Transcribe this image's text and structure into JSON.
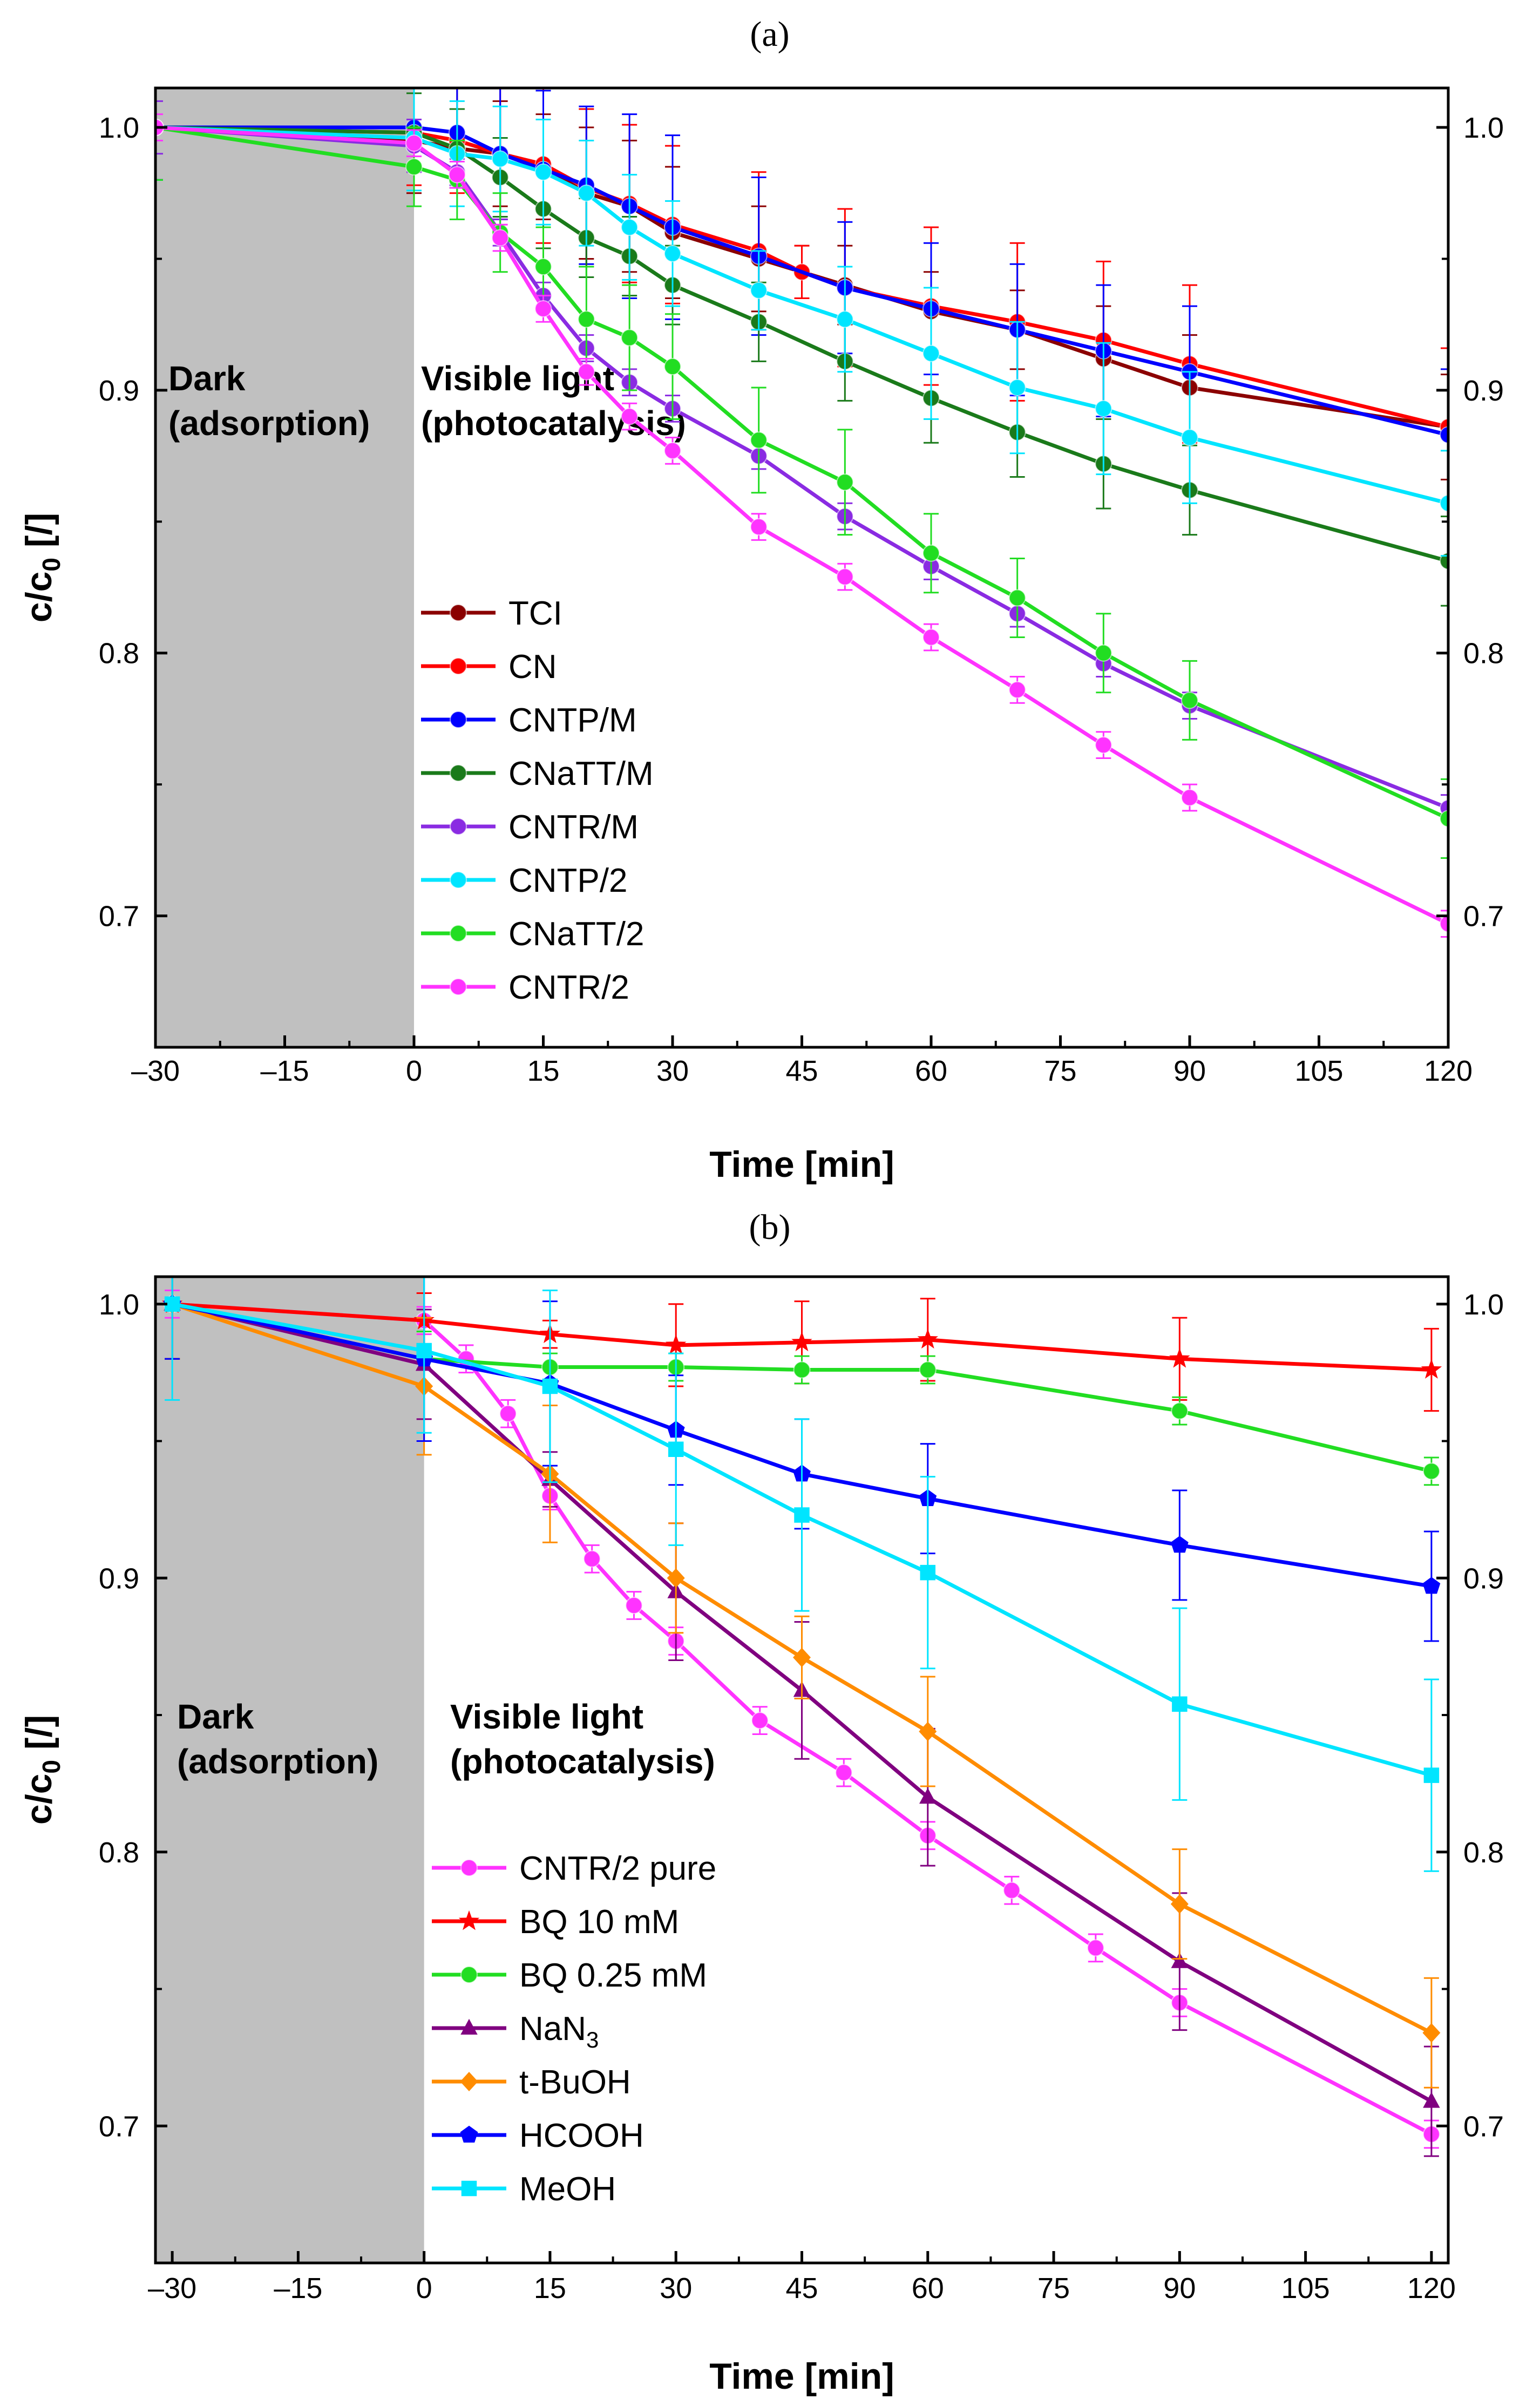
{
  "chart_data": [
    {
      "type": "line",
      "panel_label": "(a)",
      "xlabel": "Time [min]",
      "ylabel_main": "c/c",
      "ylabel_sub": "0",
      "ylabel_unit": " [/]",
      "xlim": [
        -30,
        120
      ],
      "ylim": [
        0.65,
        1.015
      ],
      "xticks": [
        -30,
        -15,
        0,
        15,
        30,
        45,
        60,
        75,
        90,
        105,
        120
      ],
      "xtick_labels": [
        "–30",
        "–15",
        "0",
        "15",
        "30",
        "45",
        "60",
        "75",
        "90",
        "105",
        "120"
      ],
      "yticks": [
        0.7,
        0.8,
        0.9,
        1.0
      ],
      "ytick_labels": [
        "0.7",
        "0.8",
        "0.9",
        "1.0"
      ],
      "shaded_region": {
        "x_from": -30,
        "x_to": 0,
        "color": "#c0c0c0"
      },
      "annotations": [
        {
          "lines": [
            "Dark",
            "(adsorption)"
          ],
          "x": -29,
          "y": 0.915
        },
        {
          "lines": [
            "Visible light",
            "(photocatalysis)"
          ],
          "x": 1,
          "y": 0.915
        }
      ],
      "legend": {
        "position": "lower-left-center"
      },
      "series": [
        {
          "name": "TCI",
          "color": "#8b0000",
          "marker": "circle",
          "x": [
            -30,
            0,
            5,
            10,
            15,
            20,
            25,
            30,
            40,
            45,
            50,
            60,
            70,
            80,
            90,
            120
          ],
          "y": [
            1.0,
            0.995,
            0.992,
            0.99,
            0.985,
            0.975,
            0.97,
            0.96,
            0.95,
            0.945,
            0.94,
            0.93,
            0.923,
            0.912,
            0.901,
            0.886
          ],
          "err": [
            0.02,
            0.02,
            0.015,
            0.02,
            0.02,
            0.025,
            0.025,
            0.025,
            0.02,
            0.01,
            0.015,
            0.015,
            0.015,
            0.02,
            0.02,
            0.02
          ]
        },
        {
          "name": "CN",
          "color": "#ff0000",
          "marker": "circle",
          "x": [
            -30,
            0,
            5,
            10,
            15,
            20,
            25,
            30,
            40,
            45,
            50,
            60,
            70,
            80,
            90,
            120
          ],
          "y": [
            1.0,
            0.998,
            0.995,
            0.99,
            0.986,
            0.977,
            0.971,
            0.963,
            0.953,
            0.945,
            0.939,
            0.932,
            0.926,
            0.919,
            0.91,
            0.886
          ],
          "err": [
            0.02,
            0.02,
            0.02,
            0.025,
            0.03,
            0.03,
            0.03,
            0.03,
            0.03,
            0.01,
            0.03,
            0.03,
            0.03,
            0.03,
            0.03,
            0.03
          ]
        },
        {
          "name": "CNTP/M",
          "color": "#0000ff",
          "marker": "circle",
          "x": [
            -30,
            0,
            5,
            10,
            15,
            20,
            25,
            30,
            40,
            50,
            60,
            70,
            80,
            90,
            120
          ],
          "y": [
            1.0,
            1.0,
            0.998,
            0.99,
            0.984,
            0.978,
            0.97,
            0.962,
            0.951,
            0.939,
            0.931,
            0.923,
            0.915,
            0.907,
            0.883
          ],
          "err": [
            0.02,
            0.015,
            0.02,
            0.025,
            0.03,
            0.03,
            0.035,
            0.035,
            0.03,
            0.025,
            0.025,
            0.025,
            0.025,
            0.025,
            0.025
          ]
        },
        {
          "name": "CNaTT/M",
          "color": "#1a7a1a",
          "marker": "circle",
          "x": [
            -30,
            0,
            5,
            10,
            15,
            20,
            25,
            30,
            40,
            50,
            60,
            70,
            80,
            90,
            120
          ],
          "y": [
            1.0,
            0.998,
            0.992,
            0.981,
            0.969,
            0.958,
            0.951,
            0.94,
            0.926,
            0.911,
            0.897,
            0.884,
            0.872,
            0.862,
            0.835
          ],
          "err": [
            0.02,
            0.015,
            0.015,
            0.015,
            0.015,
            0.015,
            0.015,
            0.015,
            0.015,
            0.015,
            0.017,
            0.017,
            0.017,
            0.017,
            0.017
          ]
        },
        {
          "name": "CNTR/M",
          "color": "#8a2be2",
          "marker": "circle",
          "x": [
            -30,
            0,
            5,
            10,
            15,
            20,
            25,
            30,
            40,
            50,
            60,
            70,
            80,
            90,
            120
          ],
          "y": [
            1.0,
            0.993,
            0.983,
            0.96,
            0.936,
            0.916,
            0.903,
            0.893,
            0.875,
            0.852,
            0.833,
            0.815,
            0.796,
            0.78,
            0.741
          ],
          "err": [
            0.01,
            0.01,
            0.005,
            0.005,
            0.005,
            0.005,
            0.005,
            0.005,
            0.005,
            0.005,
            0.005,
            0.005,
            0.005,
            0.005,
            0.005
          ]
        },
        {
          "name": "CNTP/2",
          "color": "#00e5ff",
          "marker": "circle",
          "x": [
            -30,
            0,
            5,
            10,
            15,
            20,
            25,
            30,
            40,
            50,
            60,
            70,
            80,
            90,
            120
          ],
          "y": [
            1.0,
            0.996,
            0.99,
            0.988,
            0.983,
            0.975,
            0.962,
            0.952,
            0.938,
            0.927,
            0.914,
            0.901,
            0.893,
            0.882,
            0.857
          ],
          "err": [
            0.02,
            0.02,
            0.02,
            0.02,
            0.02,
            0.02,
            0.02,
            0.02,
            0.015,
            0.02,
            0.025,
            0.025,
            0.025,
            0.025,
            0.02
          ]
        },
        {
          "name": "CNaTT/2",
          "color": "#22dd22",
          "marker": "circle",
          "x": [
            -30,
            0,
            5,
            10,
            15,
            20,
            25,
            30,
            40,
            50,
            60,
            70,
            80,
            90,
            120
          ],
          "y": [
            1.0,
            0.985,
            0.98,
            0.96,
            0.947,
            0.927,
            0.92,
            0.909,
            0.881,
            0.865,
            0.838,
            0.821,
            0.8,
            0.782,
            0.737
          ],
          "err": [
            0.02,
            0.015,
            0.015,
            0.015,
            0.015,
            0.02,
            0.02,
            0.02,
            0.02,
            0.02,
            0.015,
            0.015,
            0.015,
            0.015,
            0.015
          ]
        },
        {
          "name": "CNTR/2",
          "color": "#ff33ff",
          "marker": "circle",
          "x": [
            -30,
            0,
            5,
            10,
            15,
            20,
            25,
            30,
            40,
            50,
            60,
            70,
            80,
            90,
            120
          ],
          "y": [
            1.0,
            0.994,
            0.982,
            0.958,
            0.931,
            0.907,
            0.89,
            0.877,
            0.848,
            0.829,
            0.806,
            0.786,
            0.765,
            0.745,
            0.697
          ],
          "err": [
            0.005,
            0.005,
            0.005,
            0.005,
            0.005,
            0.005,
            0.005,
            0.005,
            0.005,
            0.005,
            0.005,
            0.005,
            0.005,
            0.005,
            0.005
          ]
        }
      ]
    },
    {
      "type": "line",
      "panel_label": "(b)",
      "xlabel": "Time [min]",
      "ylabel_main": "c/c",
      "ylabel_sub": "0",
      "ylabel_unit": " [/]",
      "xlim": [
        -32,
        122
      ],
      "ylim": [
        0.65,
        1.01
      ],
      "xticks": [
        -30,
        -15,
        0,
        15,
        30,
        45,
        60,
        75,
        90,
        105,
        120
      ],
      "xtick_labels": [
        "–30",
        "–15",
        "0",
        "15",
        "30",
        "45",
        "60",
        "75",
        "90",
        "105",
        "120"
      ],
      "yticks": [
        0.7,
        0.8,
        0.9,
        1.0
      ],
      "ytick_labels": [
        "0.7",
        "0.8",
        "0.9",
        "1.0"
      ],
      "shaded_region": {
        "x_from": -32,
        "x_to": 0,
        "color": "#c0c0c0"
      },
      "annotations": [
        {
          "lines": [
            "Dark",
            "(adsorption)"
          ],
          "x": -31,
          "y": 0.855
        },
        {
          "lines": [
            "Visible light",
            "(photocatalysis)"
          ],
          "x": 1.5,
          "y": 0.855
        }
      ],
      "legend": {
        "position": "lower-left-center"
      },
      "series": [
        {
          "name": "CNTR/2 pure",
          "color": "#ff33ff",
          "marker": "circle",
          "x": [
            -30,
            0,
            5,
            10,
            15,
            20,
            25,
            30,
            40,
            50,
            60,
            70,
            80,
            90,
            120
          ],
          "y": [
            1.0,
            0.994,
            0.98,
            0.96,
            0.93,
            0.907,
            0.89,
            0.877,
            0.848,
            0.829,
            0.806,
            0.786,
            0.765,
            0.745,
            0.697
          ],
          "err": [
            0.005,
            0.005,
            0.005,
            0.005,
            0.005,
            0.005,
            0.005,
            0.005,
            0.005,
            0.005,
            0.005,
            0.005,
            0.005,
            0.005,
            0.005
          ]
        },
        {
          "name": "BQ 10 mM",
          "color": "#ff0000",
          "marker": "star",
          "x": [
            -30,
            0,
            15,
            30,
            45,
            60,
            90,
            120
          ],
          "y": [
            1.0,
            0.994,
            0.989,
            0.985,
            0.986,
            0.987,
            0.98,
            0.976
          ],
          "err": [
            0.02,
            0.01,
            0.005,
            0.015,
            0.015,
            0.015,
            0.015,
            0.015
          ]
        },
        {
          "name": "BQ 0.25 mM",
          "color": "#22dd22",
          "marker": "circle",
          "x": [
            -30,
            0,
            15,
            30,
            45,
            60,
            90,
            120
          ],
          "y": [
            1.0,
            0.98,
            0.977,
            0.977,
            0.976,
            0.976,
            0.961,
            0.939
          ],
          "err": [
            0.02,
            0.01,
            0.005,
            0.005,
            0.005,
            0.005,
            0.005,
            0.005
          ]
        },
        {
          "name": "NaN",
          "name_sub": "3",
          "color": "#800080",
          "marker": "triangle",
          "x": [
            -30,
            0,
            15,
            30,
            45,
            60,
            90,
            120
          ],
          "y": [
            1.0,
            0.978,
            0.936,
            0.895,
            0.859,
            0.82,
            0.76,
            0.709
          ],
          "err": [
            0.02,
            0.02,
            0.01,
            0.025,
            0.025,
            0.025,
            0.025,
            0.02
          ]
        },
        {
          "name": "t-BuOH",
          "color": "#ff8c00",
          "marker": "diamond",
          "x": [
            -30,
            0,
            15,
            30,
            45,
            60,
            90,
            120
          ],
          "y": [
            1.0,
            0.97,
            0.938,
            0.9,
            0.871,
            0.844,
            0.781,
            0.734
          ],
          "err": [
            0.02,
            0.025,
            0.025,
            0.02,
            0.015,
            0.02,
            0.02,
            0.02
          ]
        },
        {
          "name": "HCOOH",
          "color": "#0000ff",
          "marker": "pentagon",
          "x": [
            -30,
            0,
            15,
            30,
            45,
            60,
            90,
            120
          ],
          "y": [
            1.0,
            0.98,
            0.971,
            0.954,
            0.938,
            0.929,
            0.912,
            0.897
          ],
          "err": [
            0.02,
            0.03,
            0.03,
            0.02,
            0.02,
            0.02,
            0.02,
            0.02
          ]
        },
        {
          "name": "MeOH",
          "color": "#00e5ff",
          "marker": "square",
          "x": [
            -30,
            0,
            15,
            30,
            45,
            60,
            90,
            120
          ],
          "y": [
            1.0,
            0.983,
            0.97,
            0.947,
            0.923,
            0.902,
            0.854,
            0.828
          ],
          "err": [
            0.035,
            0.03,
            0.035,
            0.035,
            0.035,
            0.035,
            0.035,
            0.035
          ]
        }
      ]
    }
  ]
}
